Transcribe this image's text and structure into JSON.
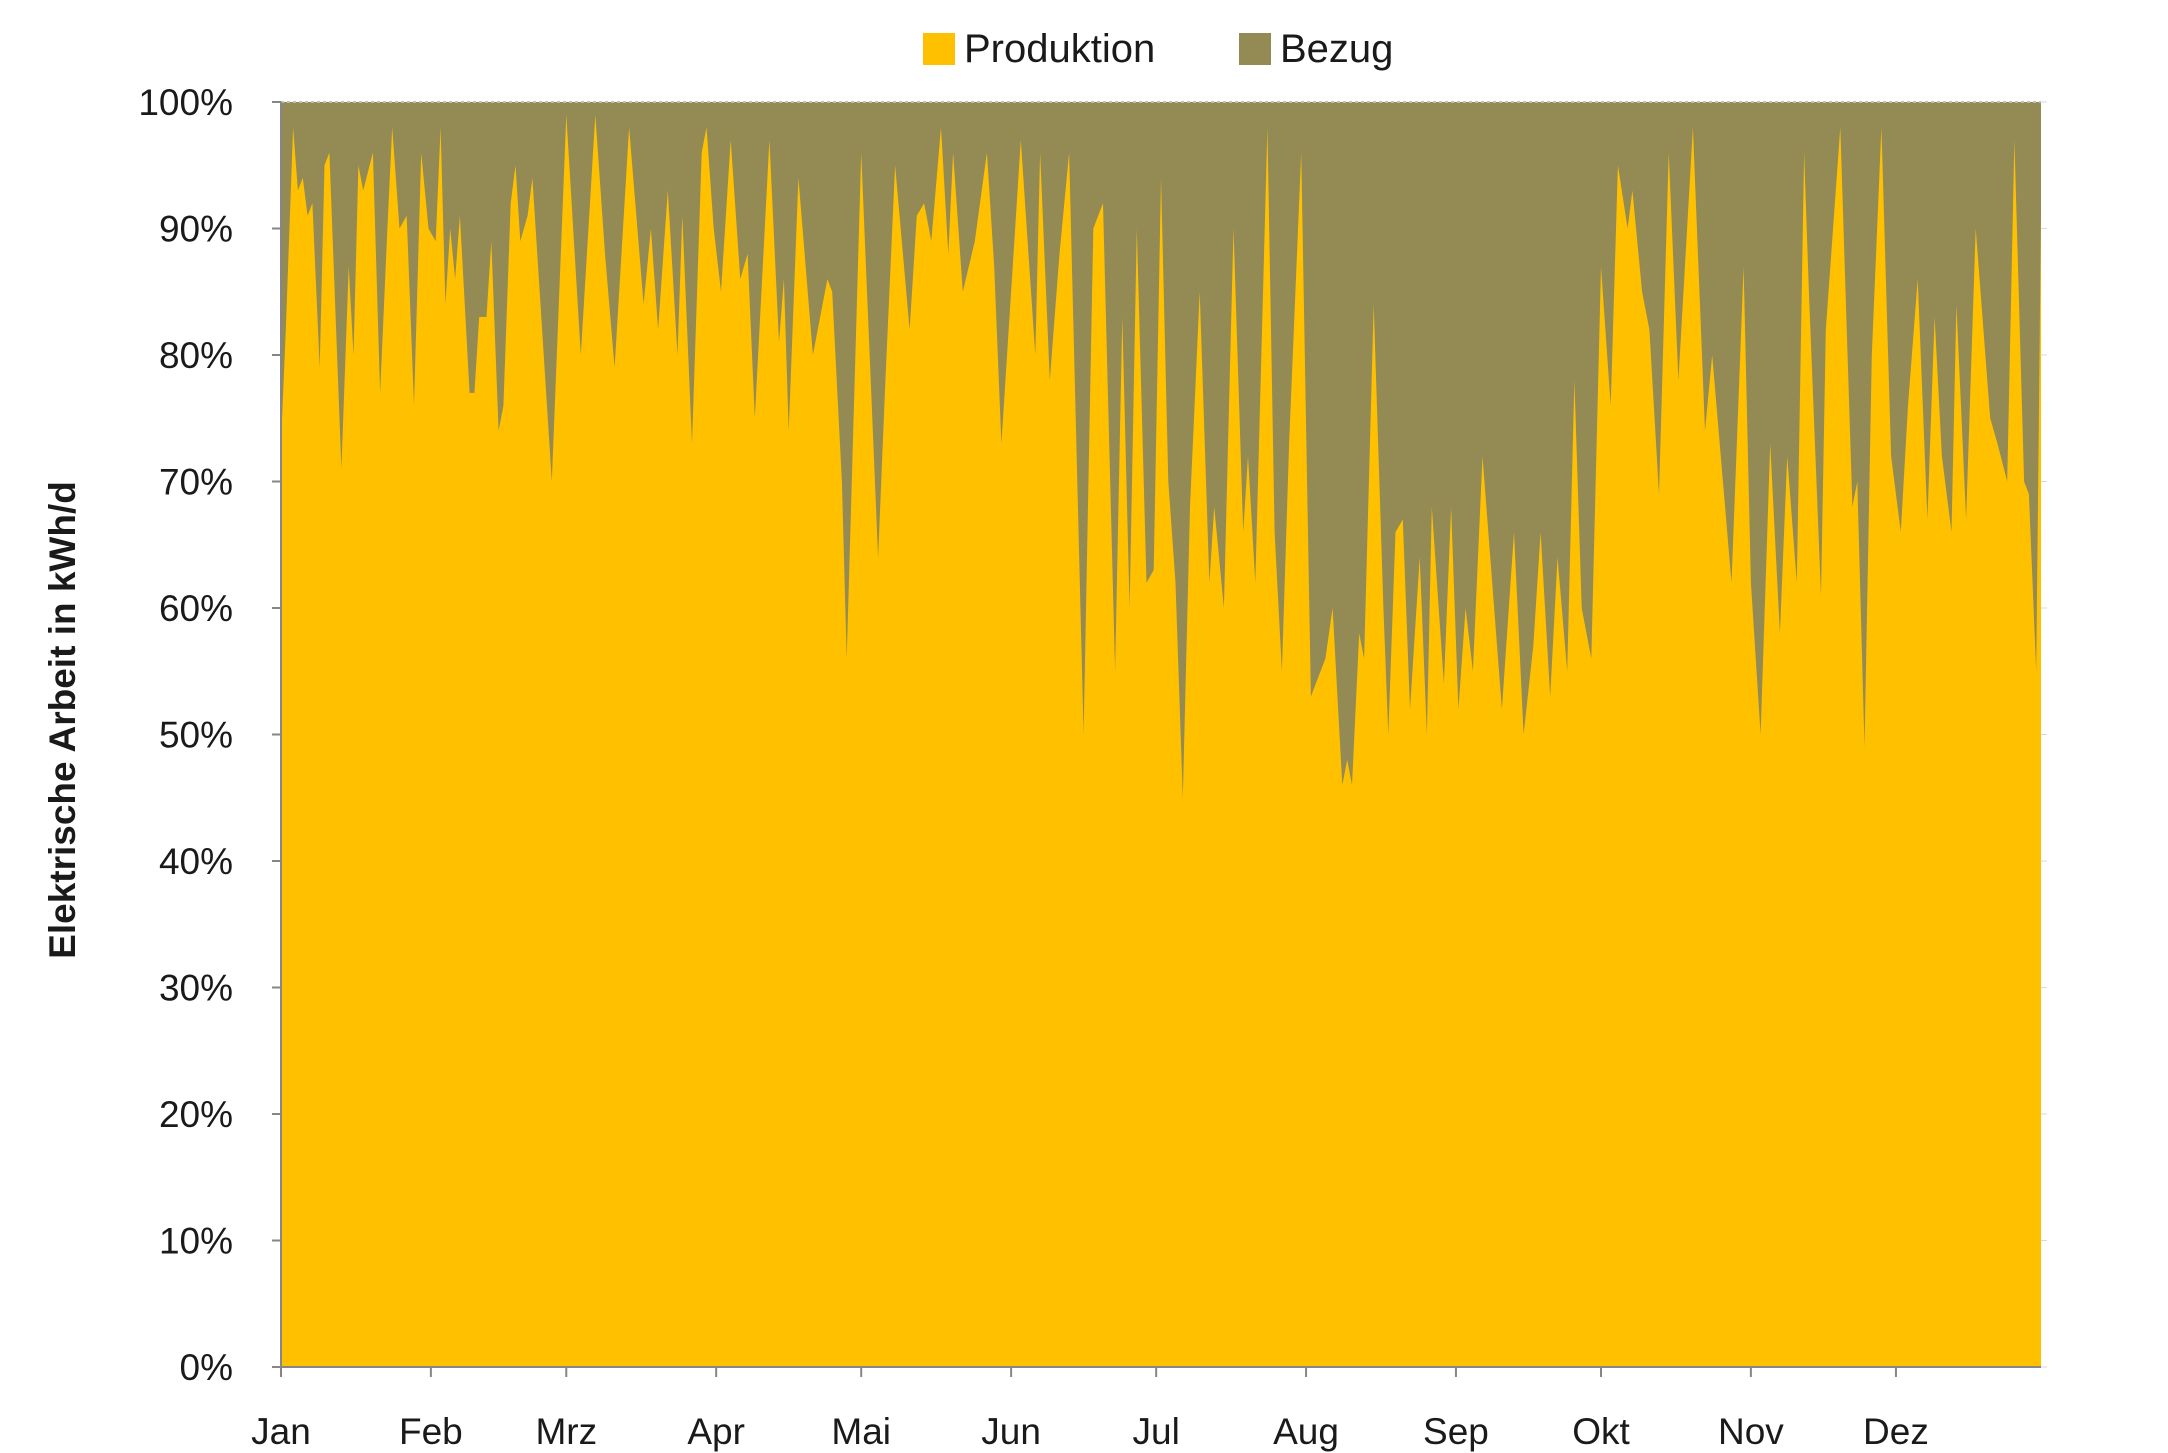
{
  "chart_data": {
    "type": "area",
    "stacked": "percent",
    "title": "",
    "xlabel": "",
    "ylabel": "Elektrische Arbeit in kWh/d",
    "ylim": [
      0,
      100
    ],
    "xlim": [
      0,
      364
    ],
    "x_unit": "day of year",
    "yticks": [
      "0%",
      "10%",
      "20%",
      "30%",
      "40%",
      "50%",
      "60%",
      "70%",
      "80%",
      "90%",
      "100%"
    ],
    "months": [
      {
        "label": "Jan",
        "day": 0
      },
      {
        "label": "Feb",
        "day": 31
      },
      {
        "label": "Mrz",
        "day": 59
      },
      {
        "label": "Apr",
        "day": 90
      },
      {
        "label": "Mai",
        "day": 120
      },
      {
        "label": "Jun",
        "day": 151
      },
      {
        "label": "Jul",
        "day": 181
      },
      {
        "label": "Aug",
        "day": 212
      },
      {
        "label": "Sep",
        "day": 243
      },
      {
        "label": "Okt",
        "day": 273
      },
      {
        "label": "Nov",
        "day": 304
      },
      {
        "label": "Dez",
        "day": 334
      }
    ],
    "legend": {
      "placement": "top-center",
      "entries": [
        "Produktion",
        "Bezug"
      ]
    },
    "colors": {
      "Produktion": "#FFC000",
      "Bezug": "#948A54"
    },
    "series": [
      {
        "name": "Produktion",
        "note": "Bezug = 100 - Produktion",
        "points": [
          [
            0,
            73
          ],
          [
            1,
            82
          ],
          [
            2.5,
            98
          ],
          [
            3.5,
            93
          ],
          [
            4.5,
            94
          ],
          [
            5.5,
            91
          ],
          [
            6.5,
            92
          ],
          [
            8,
            79
          ],
          [
            9,
            95
          ],
          [
            10,
            96
          ],
          [
            12.5,
            71
          ],
          [
            14,
            87
          ],
          [
            15,
            80
          ],
          [
            16,
            95
          ],
          [
            17,
            93
          ],
          [
            19,
            96
          ],
          [
            20.5,
            77
          ],
          [
            22,
            90
          ],
          [
            23,
            98
          ],
          [
            24.5,
            90
          ],
          [
            26,
            91
          ],
          [
            27.5,
            76
          ],
          [
            29,
            96
          ],
          [
            30.5,
            90
          ],
          [
            32,
            89
          ],
          [
            33,
            98
          ],
          [
            34,
            84
          ],
          [
            35,
            90
          ],
          [
            36,
            86
          ],
          [
            37,
            91
          ],
          [
            39,
            77
          ],
          [
            40,
            77
          ],
          [
            41,
            83
          ],
          [
            42.5,
            83
          ],
          [
            43.5,
            89
          ],
          [
            45,
            74
          ],
          [
            46,
            76
          ],
          [
            47.5,
            92
          ],
          [
            48.5,
            95
          ],
          [
            49.5,
            89
          ],
          [
            51,
            91
          ],
          [
            52,
            94
          ],
          [
            56,
            70
          ],
          [
            59,
            99
          ],
          [
            62,
            80
          ],
          [
            65,
            99
          ],
          [
            67,
            88
          ],
          [
            69,
            79
          ],
          [
            72,
            98
          ],
          [
            75,
            84
          ],
          [
            76.5,
            90
          ],
          [
            78,
            82
          ],
          [
            80,
            93
          ],
          [
            82,
            80
          ],
          [
            83,
            91
          ],
          [
            85,
            73
          ],
          [
            87,
            96
          ],
          [
            88,
            98
          ],
          [
            89.5,
            90
          ],
          [
            91,
            85
          ],
          [
            93,
            97
          ],
          [
            95,
            86
          ],
          [
            96.5,
            88
          ],
          [
            98,
            75
          ],
          [
            101,
            97
          ],
          [
            103,
            81
          ],
          [
            104,
            86
          ],
          [
            105,
            74
          ],
          [
            107,
            94
          ],
          [
            110,
            80
          ],
          [
            113,
            86
          ],
          [
            114,
            85
          ],
          [
            116,
            70
          ],
          [
            117,
            56
          ],
          [
            120,
            96
          ],
          [
            123.5,
            64
          ],
          [
            125,
            78
          ],
          [
            127,
            95
          ],
          [
            130,
            82
          ],
          [
            131.5,
            91
          ],
          [
            133,
            92
          ],
          [
            134.5,
            89
          ],
          [
            136.5,
            98
          ],
          [
            138,
            88
          ],
          [
            139,
            96
          ],
          [
            141,
            85
          ],
          [
            143.5,
            89
          ],
          [
            146,
            96
          ],
          [
            147.5,
            87
          ],
          [
            149,
            73
          ],
          [
            153,
            97
          ],
          [
            156,
            80
          ],
          [
            157,
            96
          ],
          [
            159,
            78
          ],
          [
            161,
            88
          ],
          [
            163,
            96
          ],
          [
            166,
            50
          ],
          [
            168,
            90
          ],
          [
            170,
            92
          ],
          [
            172.5,
            55
          ],
          [
            174,
            83
          ],
          [
            175.5,
            60
          ],
          [
            177,
            90
          ],
          [
            179,
            62
          ],
          [
            180.5,
            63
          ],
          [
            182,
            94
          ],
          [
            183.5,
            70
          ],
          [
            185,
            62
          ],
          [
            186.5,
            45
          ],
          [
            188,
            68
          ],
          [
            190,
            85
          ],
          [
            192,
            62
          ],
          [
            193,
            68
          ],
          [
            195,
            60
          ],
          [
            197,
            90
          ],
          [
            199,
            66
          ],
          [
            200,
            72
          ],
          [
            201.5,
            62
          ],
          [
            204,
            98
          ],
          [
            205.5,
            66
          ],
          [
            207,
            55
          ],
          [
            208.5,
            73
          ],
          [
            211,
            96
          ],
          [
            213,
            53
          ],
          [
            214,
            54
          ],
          [
            216,
            56
          ],
          [
            217.5,
            60
          ],
          [
            219.5,
            46
          ],
          [
            220.5,
            48
          ],
          [
            221.5,
            46
          ],
          [
            223,
            58
          ],
          [
            224,
            56
          ],
          [
            226,
            84
          ],
          [
            228,
            60
          ],
          [
            229,
            50
          ],
          [
            230.5,
            66
          ],
          [
            232,
            67
          ],
          [
            233.5,
            52
          ],
          [
            235.5,
            64
          ],
          [
            237,
            50
          ],
          [
            238,
            68
          ],
          [
            240.5,
            54
          ],
          [
            242,
            68
          ],
          [
            243.5,
            52
          ],
          [
            245,
            60
          ],
          [
            246.5,
            55
          ],
          [
            248.5,
            72
          ],
          [
            250.5,
            62
          ],
          [
            252.5,
            52
          ],
          [
            255,
            66
          ],
          [
            257,
            50
          ],
          [
            259,
            57
          ],
          [
            260.5,
            66
          ],
          [
            262.5,
            53
          ],
          [
            264,
            64
          ],
          [
            266,
            55
          ],
          [
            267.5,
            78
          ],
          [
            269,
            60
          ],
          [
            271,
            56
          ],
          [
            273,
            87
          ],
          [
            275,
            76
          ],
          [
            276.5,
            95
          ],
          [
            278.5,
            90
          ],
          [
            279.5,
            93
          ],
          [
            281.5,
            85
          ],
          [
            283,
            82
          ],
          [
            285,
            69
          ],
          [
            287,
            96
          ],
          [
            289,
            78
          ],
          [
            292,
            98
          ],
          [
            294.5,
            74
          ],
          [
            296,
            80
          ],
          [
            300,
            62
          ],
          [
            302.5,
            87
          ],
          [
            304,
            62
          ],
          [
            306,
            50
          ],
          [
            308,
            73
          ],
          [
            310,
            58
          ],
          [
            311.5,
            72
          ],
          [
            313.5,
            62
          ],
          [
            315,
            96
          ],
          [
            316,
            85
          ],
          [
            318.5,
            61
          ],
          [
            319.5,
            82
          ],
          [
            322.5,
            98
          ],
          [
            325,
            68
          ],
          [
            326,
            70
          ],
          [
            327.5,
            49
          ],
          [
            329,
            80
          ],
          [
            331,
            98
          ],
          [
            333,
            72
          ],
          [
            335,
            66
          ],
          [
            336.5,
            76
          ],
          [
            338.5,
            86
          ],
          [
            340.5,
            67
          ],
          [
            342,
            83
          ],
          [
            343.5,
            72
          ],
          [
            345.5,
            66
          ],
          [
            346.5,
            84
          ],
          [
            348.5,
            67
          ],
          [
            350.5,
            90
          ],
          [
            353.5,
            75
          ],
          [
            355,
            73
          ],
          [
            357,
            70
          ],
          [
            358.5,
            97
          ],
          [
            360.5,
            70
          ],
          [
            361.5,
            69
          ],
          [
            363,
            55
          ],
          [
            364,
            91
          ]
        ]
      },
      {
        "name": "Bezug"
      }
    ]
  }
}
